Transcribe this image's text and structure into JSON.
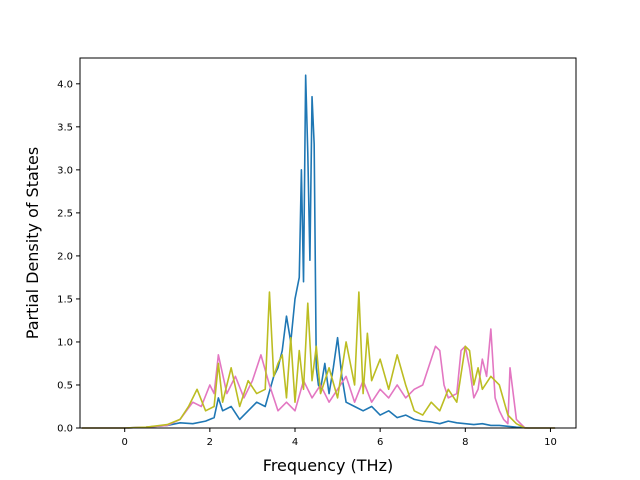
{
  "chart_data": {
    "type": "line",
    "title": "",
    "xlabel": "Frequency (THz)",
    "ylabel": "Partial Density of States",
    "xlim": [
      -1.05,
      10.6
    ],
    "ylim": [
      0,
      4.3
    ],
    "xticks": [
      0,
      2,
      4,
      6,
      8,
      10
    ],
    "yticks": [
      0.0,
      0.5,
      1.0,
      1.5,
      2.0,
      2.5,
      3.0,
      3.5,
      4.0
    ],
    "ytick_labels": [
      "0.0",
      "0.5",
      "1.0",
      "1.5",
      "2.0",
      "2.5",
      "3.0",
      "3.5",
      "4.0"
    ],
    "grid": false,
    "legend": "none",
    "series": [
      {
        "color": "#1f77b4",
        "x": [
          -1.0,
          0.0,
          0.5,
          1.0,
          1.3,
          1.6,
          1.9,
          2.1,
          2.2,
          2.3,
          2.5,
          2.7,
          2.9,
          3.1,
          3.3,
          3.5,
          3.6,
          3.7,
          3.8,
          3.9,
          4.0,
          4.1,
          4.15,
          4.2,
          4.25,
          4.3,
          4.35,
          4.4,
          4.45,
          4.5,
          4.55,
          4.6,
          4.7,
          4.8,
          4.9,
          5.0,
          5.1,
          5.2,
          5.4,
          5.6,
          5.8,
          6.0,
          6.2,
          6.4,
          6.6,
          6.8,
          7.0,
          7.2,
          7.4,
          7.6,
          7.8,
          8.0,
          8.2,
          8.4,
          8.6,
          8.8,
          9.0,
          9.2,
          9.5,
          10.1
        ],
        "y": [
          0.0,
          0.0,
          0.01,
          0.03,
          0.06,
          0.05,
          0.08,
          0.12,
          0.35,
          0.2,
          0.25,
          0.1,
          0.2,
          0.3,
          0.25,
          0.6,
          0.7,
          0.9,
          1.3,
          1.0,
          1.5,
          1.75,
          3.0,
          1.7,
          4.1,
          3.2,
          1.95,
          3.85,
          3.3,
          0.7,
          0.5,
          0.45,
          0.75,
          0.4,
          0.7,
          1.05,
          0.6,
          0.3,
          0.25,
          0.2,
          0.25,
          0.15,
          0.2,
          0.12,
          0.15,
          0.1,
          0.08,
          0.07,
          0.05,
          0.08,
          0.06,
          0.05,
          0.04,
          0.05,
          0.03,
          0.03,
          0.02,
          0.01,
          0.0,
          0.0
        ]
      },
      {
        "color": "#e377c2",
        "x": [
          -1.0,
          0.0,
          0.5,
          1.0,
          1.3,
          1.6,
          1.8,
          2.0,
          2.1,
          2.2,
          2.4,
          2.6,
          2.8,
          3.0,
          3.2,
          3.4,
          3.6,
          3.8,
          4.0,
          4.2,
          4.4,
          4.6,
          4.8,
          5.0,
          5.2,
          5.4,
          5.6,
          5.8,
          6.0,
          6.2,
          6.4,
          6.6,
          6.8,
          7.0,
          7.2,
          7.3,
          7.4,
          7.5,
          7.6,
          7.8,
          7.9,
          8.0,
          8.1,
          8.2,
          8.3,
          8.4,
          8.5,
          8.6,
          8.7,
          8.8,
          8.9,
          9.0,
          9.05,
          9.1,
          9.2,
          9.4,
          10.1
        ],
        "y": [
          0.0,
          0.0,
          0.01,
          0.03,
          0.1,
          0.3,
          0.25,
          0.5,
          0.4,
          0.85,
          0.4,
          0.6,
          0.35,
          0.55,
          0.85,
          0.5,
          0.2,
          0.3,
          0.2,
          0.55,
          0.35,
          0.5,
          0.3,
          0.45,
          0.6,
          0.3,
          0.55,
          0.3,
          0.45,
          0.35,
          0.5,
          0.35,
          0.45,
          0.5,
          0.8,
          0.95,
          0.9,
          0.5,
          0.35,
          0.4,
          0.9,
          0.95,
          0.7,
          0.35,
          0.45,
          0.8,
          0.6,
          1.15,
          0.35,
          0.2,
          0.1,
          0.05,
          0.7,
          0.5,
          0.1,
          0.0,
          0.0
        ]
      },
      {
        "color": "#bcbd22",
        "x": [
          -1.0,
          0.0,
          0.5,
          1.0,
          1.3,
          1.5,
          1.7,
          1.9,
          2.1,
          2.2,
          2.3,
          2.5,
          2.7,
          2.9,
          3.1,
          3.3,
          3.4,
          3.5,
          3.6,
          3.7,
          3.8,
          3.9,
          4.0,
          4.1,
          4.2,
          4.3,
          4.4,
          4.5,
          4.6,
          4.8,
          5.0,
          5.2,
          5.4,
          5.5,
          5.6,
          5.7,
          5.8,
          6.0,
          6.2,
          6.4,
          6.6,
          6.8,
          7.0,
          7.2,
          7.4,
          7.6,
          7.8,
          8.0,
          8.1,
          8.2,
          8.3,
          8.4,
          8.6,
          8.8,
          9.0,
          9.2,
          9.4,
          10.1
        ],
        "y": [
          0.0,
          0.0,
          0.01,
          0.04,
          0.1,
          0.25,
          0.45,
          0.2,
          0.25,
          0.75,
          0.3,
          0.7,
          0.25,
          0.55,
          0.4,
          0.45,
          1.58,
          0.6,
          0.75,
          0.85,
          0.35,
          1.05,
          0.3,
          0.9,
          0.45,
          1.45,
          0.55,
          0.95,
          0.4,
          0.7,
          0.35,
          1.0,
          0.5,
          1.58,
          0.4,
          1.1,
          0.55,
          0.8,
          0.45,
          0.85,
          0.5,
          0.2,
          0.15,
          0.3,
          0.2,
          0.45,
          0.3,
          0.95,
          0.9,
          0.5,
          0.7,
          0.45,
          0.6,
          0.5,
          0.15,
          0.05,
          0.0,
          0.0
        ]
      }
    ]
  }
}
